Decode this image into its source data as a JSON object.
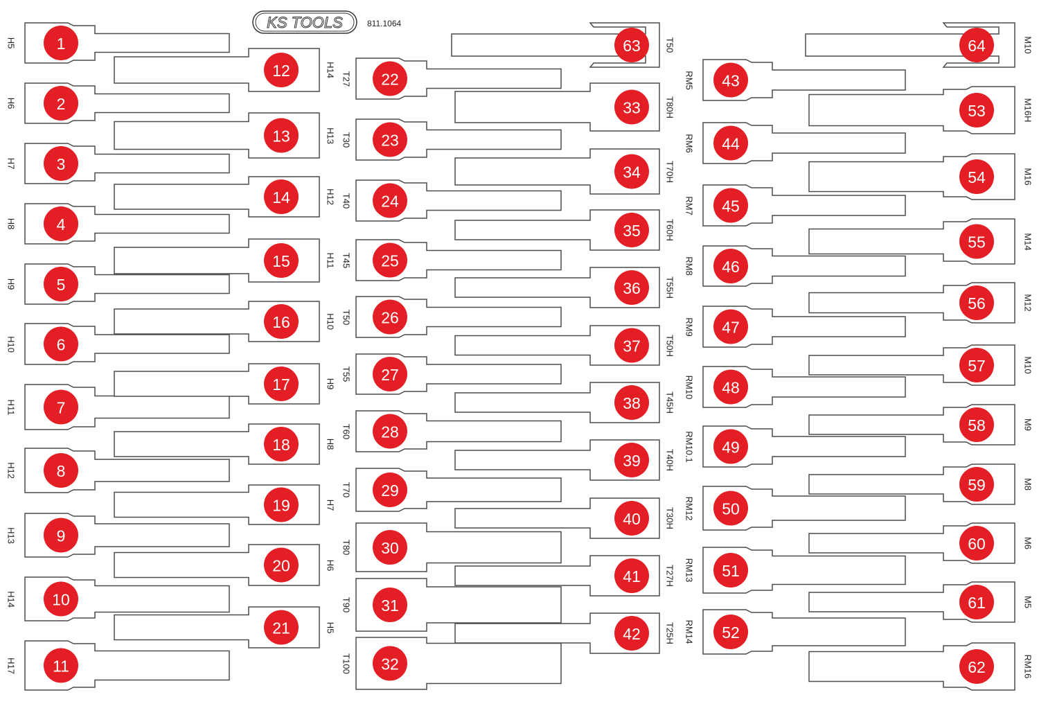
{
  "brand": {
    "logo_text": "KS TOOLS",
    "model_number": "811.1064"
  },
  "colors": {
    "badge": "#e31e24",
    "outline": "#4a4a4a"
  },
  "columns": [
    {
      "id": "A",
      "items": [
        {
          "number": "1",
          "label": "H5"
        },
        {
          "number": "2",
          "label": "H6"
        },
        {
          "number": "3",
          "label": "H7"
        },
        {
          "number": "4",
          "label": "H8"
        },
        {
          "number": "5",
          "label": "H9"
        },
        {
          "number": "6",
          "label": "H10"
        },
        {
          "number": "7",
          "label": "H11"
        },
        {
          "number": "8",
          "label": "H12"
        },
        {
          "number": "9",
          "label": "H13"
        },
        {
          "number": "10",
          "label": "H14"
        },
        {
          "number": "11",
          "label": "H17"
        }
      ]
    },
    {
      "id": "B",
      "items": [
        {
          "number": "12",
          "label": "H14"
        },
        {
          "number": "13",
          "label": "H13"
        },
        {
          "number": "14",
          "label": "H12"
        },
        {
          "number": "15",
          "label": "H11"
        },
        {
          "number": "16",
          "label": "H10"
        },
        {
          "number": "17",
          "label": "H9"
        },
        {
          "number": "18",
          "label": "H8"
        },
        {
          "number": "19",
          "label": "H7"
        },
        {
          "number": "20",
          "label": "H6"
        },
        {
          "number": "21",
          "label": "H5"
        }
      ]
    },
    {
      "id": "C",
      "items": [
        {
          "number": "22",
          "label": "T27"
        },
        {
          "number": "23",
          "label": "T30"
        },
        {
          "number": "24",
          "label": "T40"
        },
        {
          "number": "25",
          "label": "T45"
        },
        {
          "number": "26",
          "label": "T50"
        },
        {
          "number": "27",
          "label": "T55"
        },
        {
          "number": "28",
          "label": "T60"
        },
        {
          "number": "29",
          "label": "T70"
        },
        {
          "number": "30",
          "label": "T80"
        },
        {
          "number": "31",
          "label": "T90"
        },
        {
          "number": "32",
          "label": "T100"
        }
      ]
    },
    {
      "id": "D",
      "items": [
        {
          "number": "63",
          "label": "T50"
        },
        {
          "number": "33",
          "label": "T80H"
        },
        {
          "number": "34",
          "label": "T70H"
        },
        {
          "number": "35",
          "label": "T60H"
        },
        {
          "number": "36",
          "label": "T55H"
        },
        {
          "number": "37",
          "label": "T50H"
        },
        {
          "number": "38",
          "label": "T45H"
        },
        {
          "number": "39",
          "label": "T40H"
        },
        {
          "number": "40",
          "label": "T30H"
        },
        {
          "number": "41",
          "label": "T27H"
        },
        {
          "number": "42",
          "label": "T25H"
        }
      ]
    },
    {
      "id": "E",
      "items": [
        {
          "number": "43",
          "label": "RM5"
        },
        {
          "number": "44",
          "label": "RM6"
        },
        {
          "number": "45",
          "label": "RM7"
        },
        {
          "number": "46",
          "label": "RM8"
        },
        {
          "number": "47",
          "label": "RM9"
        },
        {
          "number": "48",
          "label": "RM10"
        },
        {
          "number": "49",
          "label": "RM10.1"
        },
        {
          "number": "50",
          "label": "RM12"
        },
        {
          "number": "51",
          "label": "RM13"
        },
        {
          "number": "52",
          "label": "RM14"
        }
      ]
    },
    {
      "id": "F",
      "items": [
        {
          "number": "64",
          "label": "M10"
        },
        {
          "number": "53",
          "label": "M16H"
        },
        {
          "number": "54",
          "label": "M16"
        },
        {
          "number": "55",
          "label": "M14"
        },
        {
          "number": "56",
          "label": "M12"
        },
        {
          "number": "57",
          "label": "M10"
        },
        {
          "number": "58",
          "label": "M9"
        },
        {
          "number": "59",
          "label": "M8"
        },
        {
          "number": "60",
          "label": "M6"
        },
        {
          "number": "61",
          "label": "M5"
        },
        {
          "number": "62",
          "label": "RM16"
        }
      ]
    }
  ]
}
